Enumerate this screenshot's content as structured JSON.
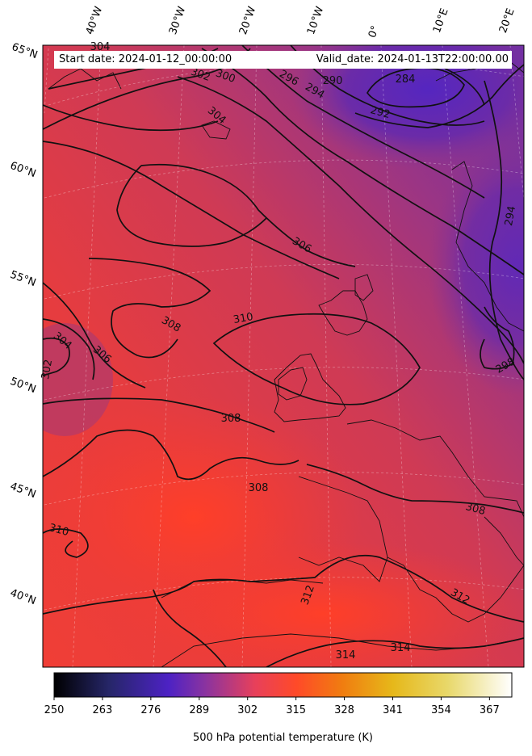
{
  "header": {
    "start_date": "Start date: 2024-01-12_00:00:00",
    "valid_date": "Valid_date: 2024-01-13T22:00:00.00"
  },
  "gridlines": {
    "longitude_labels": [
      "40°W",
      "30°W",
      "20°W",
      "10°W",
      "0°",
      "10°E",
      "20°E"
    ],
    "latitude_labels": [
      "65°N",
      "60°N",
      "55°N",
      "50°N",
      "45°N",
      "40°N"
    ]
  },
  "contours": {
    "field": "500 hPa potential temperature",
    "units": "K",
    "line_color": "#111111",
    "labels": [
      "304",
      "302",
      "300",
      "296",
      "294",
      "290",
      "284",
      "292",
      "304",
      "306",
      "304",
      "306",
      "302",
      "308",
      "310",
      "308",
      "308",
      "308",
      "310",
      "312",
      "312",
      "314",
      "314",
      "298",
      "294"
    ]
  },
  "colorbar": {
    "colormap": "CMRmap-like (black-indigo-purple-red-orange-yellow-white)",
    "ticks": [
      "250",
      "263",
      "276",
      "289",
      "302",
      "315",
      "328",
      "341",
      "354",
      "367"
    ],
    "range": [
      250,
      373
    ],
    "label": "500 hPa potential temperature (K)"
  },
  "colors": {
    "cold": "#5a2bb8",
    "mid": "#c03a60",
    "warm": "#fd3b2a"
  }
}
